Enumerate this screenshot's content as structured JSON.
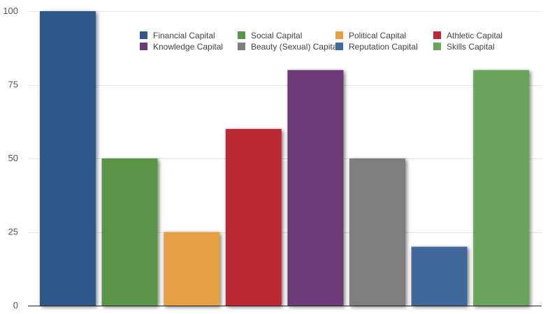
{
  "chart_data": {
    "type": "bar",
    "categories": [
      "Financial Capital",
      "Social Capital",
      "Political Capital",
      "Athletic Capital",
      "Knowledge Capital",
      "Beauty (Sexual) Capital",
      "Reputation Capital",
      "Skills Capital"
    ],
    "values": [
      100,
      50,
      25,
      60,
      80,
      50,
      20,
      80
    ],
    "colors": [
      "#2f5888",
      "#5a9447",
      "#e4a043",
      "#bb2a32",
      "#6c3a77",
      "#7d7e7d",
      "#41699a",
      "#6ba45b"
    ],
    "ylim": [
      0,
      100
    ],
    "yticks": [
      0,
      25,
      50,
      75,
      100
    ],
    "grid": true,
    "legend_placement": "top",
    "title": "",
    "xlabel": "",
    "ylabel": ""
  }
}
